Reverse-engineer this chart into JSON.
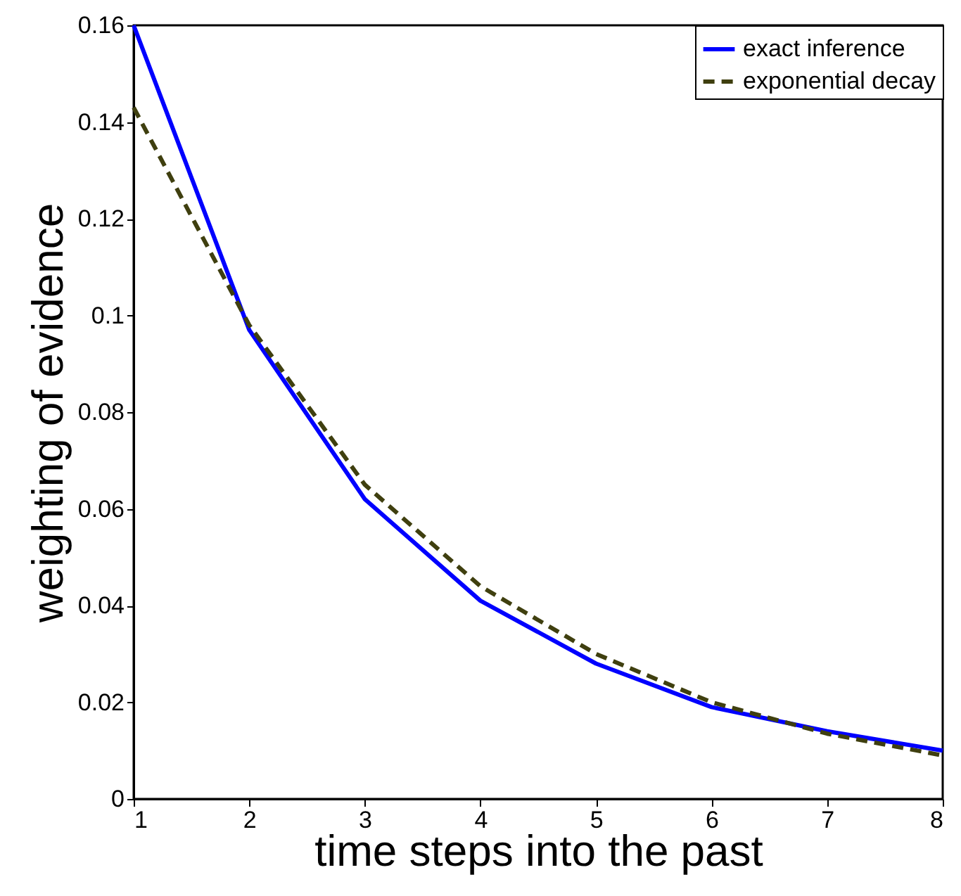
{
  "chart_data": {
    "type": "line",
    "xlabel": "time steps into the past",
    "ylabel": "weighting of evidence",
    "x": [
      1,
      2,
      3,
      4,
      5,
      6,
      7,
      8
    ],
    "series": [
      {
        "name": "exact inference",
        "color": "#0000ff",
        "line_style": "solid",
        "values": [
          0.16,
          0.097,
          0.062,
          0.041,
          0.028,
          0.019,
          0.014,
          0.01
        ]
      },
      {
        "name": "exponential decay",
        "color": "#3f3f0f",
        "line_style": "dashed",
        "values": [
          0.143,
          0.098,
          0.065,
          0.044,
          0.03,
          0.02,
          0.0135,
          0.009
        ]
      }
    ],
    "xlim": [
      1,
      8
    ],
    "xticks": [
      1,
      2,
      3,
      4,
      5,
      6,
      7,
      8
    ],
    "ylim": [
      0,
      0.16
    ],
    "yticks": [
      0,
      0.02,
      0.04,
      0.06,
      0.08,
      0.1,
      0.12,
      0.14,
      0.16
    ],
    "grid": false,
    "legend": "top right",
    "marker": "none"
  }
}
